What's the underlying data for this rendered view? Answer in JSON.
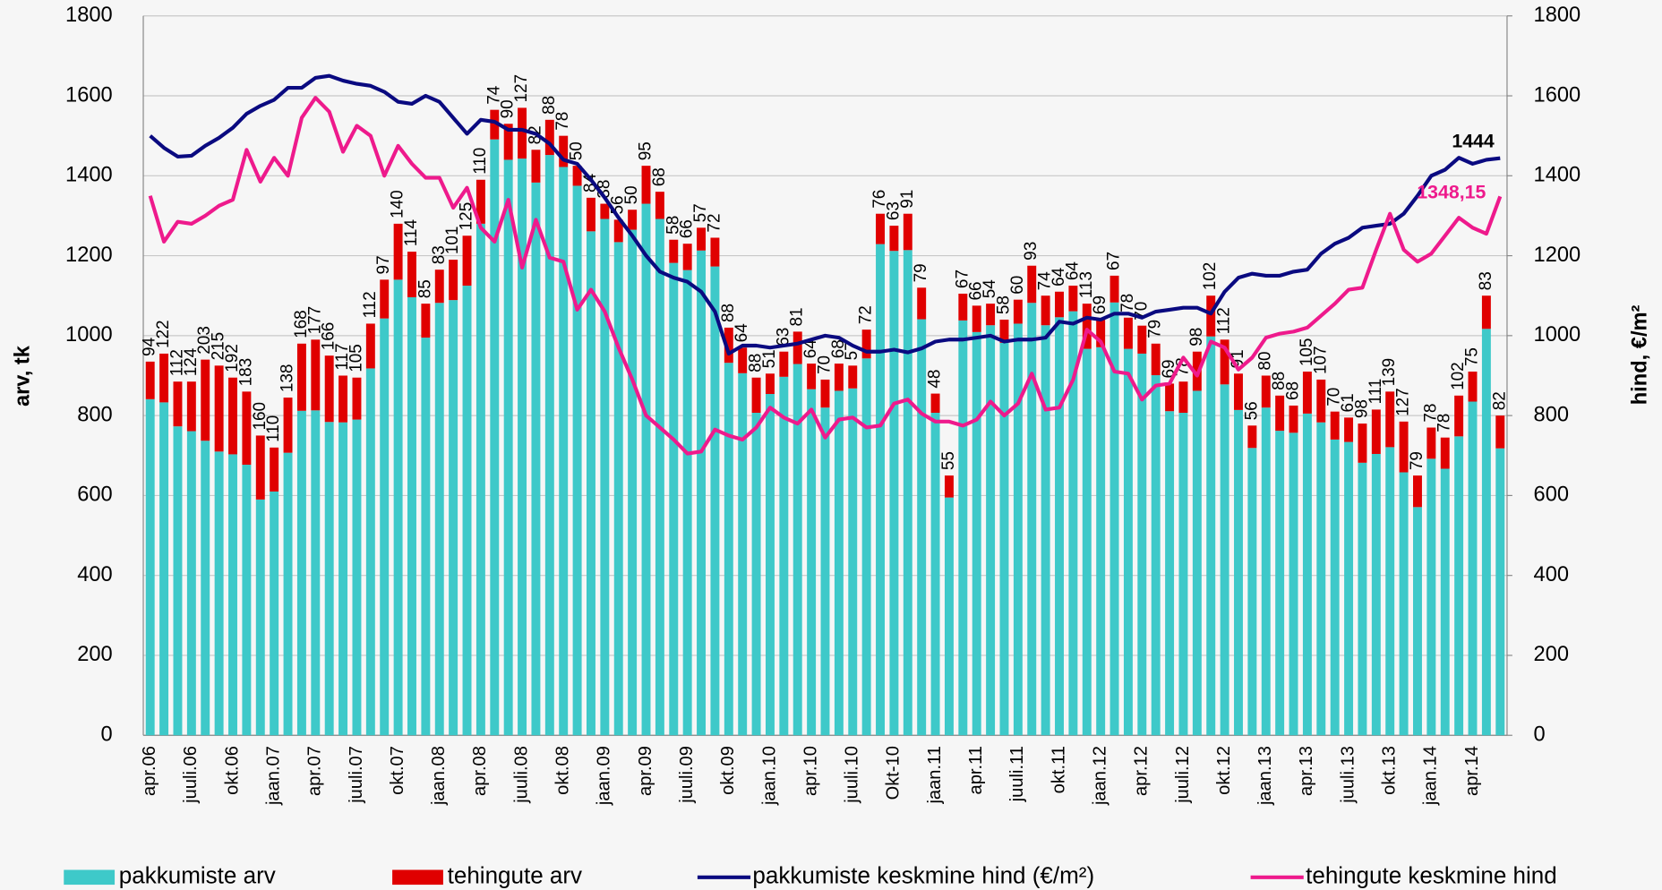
{
  "chart_data": {
    "type": "bar",
    "stacked": true,
    "ylabel": "arv, tk",
    "y2label": "hind, €/m²",
    "ylim": [
      0,
      1800
    ],
    "yticks": [
      0,
      200,
      400,
      600,
      800,
      1000,
      1200,
      1400,
      1600,
      1800
    ],
    "y2lim": [
      0,
      1800
    ],
    "y2ticks": [
      0,
      200,
      400,
      600,
      800,
      1000,
      1200,
      1400,
      1600,
      1800
    ],
    "grid": true,
    "legend": "bottom",
    "categories": [
      "apr.06",
      null,
      null,
      "juuli.06",
      null,
      null,
      "okt.06",
      null,
      null,
      "jaan.07",
      null,
      null,
      "apr.07",
      null,
      null,
      "juuli.07",
      null,
      null,
      "okt.07",
      null,
      null,
      "jaan.08",
      null,
      null,
      "apr.08",
      null,
      null,
      "juuli.08",
      null,
      null,
      "okt.08",
      null,
      null,
      "jaan.09",
      null,
      null,
      "apr.09",
      null,
      null,
      "juuli.09",
      null,
      null,
      "okt.09",
      null,
      null,
      "jaan.10",
      null,
      null,
      "apr.10",
      null,
      null,
      "juuli.10",
      null,
      null,
      "Okt-10",
      null,
      null,
      "jaan.11",
      null,
      null,
      "apr.11",
      null,
      null,
      "juuli.11",
      null,
      null,
      "okt.11",
      null,
      null,
      "jaan.12",
      null,
      null,
      "apr.12",
      null,
      null,
      "juuli.12",
      null,
      null,
      "okt.12",
      null,
      null,
      "jaan.13",
      null,
      null,
      "apr.13",
      null,
      null,
      "juuli.13",
      null,
      null,
      "okt.13",
      null,
      null,
      "jaan.14",
      null,
      null,
      "apr.14",
      null,
      null
    ],
    "series": [
      {
        "name": "pakkumiste arv",
        "type": "bar",
        "color": "#3ec9c9",
        "values": [
          841,
          833,
          773,
          761,
          737,
          710,
          703,
          677,
          590,
          610,
          707,
          812,
          813,
          784,
          783,
          790,
          918,
          1043,
          1140,
          1096,
          995,
          1082,
          1089,
          1125,
          1280,
          1491,
          1440,
          1443,
          1383,
          1452,
          1422,
          1375,
          1261,
          1292,
          1234,
          1265,
          1330,
          1292,
          1182,
          1164,
          1213,
          1173,
          932,
          906,
          807,
          854,
          897,
          929,
          866,
          820,
          862,
          868,
          943,
          1229,
          1212,
          1214,
          1041,
          807,
          595,
          1038,
          1009,
          1026,
          982,
          1030,
          1082,
          1026,
          1046,
          1061,
          967,
          971,
          1083,
          967,
          955,
          901,
          811,
          807,
          862,
          998,
          878,
          814,
          719,
          820,
          762,
          757,
          805,
          783,
          740,
          734,
          682,
          704,
          721,
          658,
          571,
          692,
          667,
          748,
          835,
          1017,
          718
        ]
      },
      {
        "name": "tehingute arv",
        "type": "bar",
        "color": "#e00000",
        "data_labels": true,
        "values": [
          94,
          122,
          112,
          124,
          203,
          215,
          192,
          183,
          160,
          110,
          138,
          168,
          177,
          166,
          117,
          105,
          112,
          97,
          140,
          114,
          85,
          83,
          101,
          125,
          110,
          74,
          90,
          127,
          82,
          88,
          78,
          50,
          84,
          38,
          56,
          50,
          95,
          68,
          58,
          66,
          57,
          72,
          88,
          64,
          88,
          51,
          63,
          81,
          64,
          70,
          68,
          57,
          72,
          76,
          63,
          91,
          79,
          48,
          55,
          67,
          66,
          54,
          58,
          60,
          93,
          74,
          64,
          64,
          113,
          69,
          67,
          78,
          70,
          79,
          69,
          78,
          98,
          102,
          112,
          91,
          56,
          80,
          88,
          68,
          105,
          107,
          70,
          61,
          98,
          111,
          139,
          127,
          79,
          78,
          78,
          102,
          75,
          83,
          82
        ]
      },
      {
        "name": "pakkumiste keskmine hind (€/m²)",
        "type": "line",
        "axis": "y2",
        "color": "#0a0a80",
        "end_label": true,
        "values": [
          1500,
          1470,
          1448,
          1450,
          1475,
          1495,
          1520,
          1555,
          1575,
          1590,
          1620,
          1620,
          1645,
          1650,
          1638,
          1630,
          1625,
          1610,
          1585,
          1580,
          1600,
          1585,
          1545,
          1505,
          1540,
          1535,
          1515,
          1515,
          1505,
          1480,
          1440,
          1430,
          1390,
          1345,
          1295,
          1250,
          1200,
          1160,
          1145,
          1135,
          1110,
          1060,
          955,
          975,
          975,
          970,
          975,
          980,
          990,
          1000,
          995,
          975,
          960,
          960,
          965,
          958,
          968,
          985,
          990,
          990,
          995,
          1000,
          985,
          990,
          990,
          995,
          1035,
          1030,
          1045,
          1040,
          1055,
          1055,
          1045,
          1060,
          1065,
          1070,
          1070,
          1055,
          1110,
          1145,
          1155,
          1150,
          1150,
          1160,
          1165,
          1205,
          1230,
          1245,
          1270,
          1275,
          1280,
          1305,
          1350,
          1400,
          1415,
          1445,
          1430,
          1440,
          1444
        ]
      },
      {
        "name": "tehingute keskmine hind",
        "type": "line",
        "axis": "y2",
        "color": "#ee1a8c",
        "values": [
          1350,
          1235,
          1285,
          1280,
          1300,
          1325,
          1340,
          1465,
          1385,
          1445,
          1400,
          1545,
          1595,
          1560,
          1460,
          1525,
          1500,
          1400,
          1475,
          1430,
          1395,
          1395,
          1320,
          1370,
          1270,
          1235,
          1340,
          1170,
          1290,
          1195,
          1185,
          1065,
          1115,
          1060,
          970,
          890,
          800,
          770,
          740,
          705,
          710,
          765,
          750,
          740,
          770,
          820,
          795,
          780,
          815,
          745,
          790,
          795,
          770,
          775,
          830,
          840,
          805,
          785,
          785,
          775,
          790,
          835,
          800,
          830,
          905,
          815,
          820,
          890,
          1015,
          985,
          910,
          905,
          840,
          875,
          880,
          945,
          900,
          985,
          970,
          915,
          945,
          995,
          1005,
          1010,
          1020,
          1050,
          1080,
          1115,
          1120,
          1215,
          1305,
          1215,
          1185,
          1205,
          1250,
          1295,
          1270,
          1255,
          1348.15
        ],
        "value_labels": [
          null,
          null,
          null,
          null,
          null,
          null,
          null,
          null,
          null,
          null,
          null,
          null,
          null,
          null,
          null,
          null,
          null,
          null,
          null,
          null,
          null,
          null,
          null,
          null,
          null,
          null,
          null,
          null,
          null,
          null,
          null,
          null,
          null,
          null,
          null,
          null,
          null,
          null,
          null,
          null,
          null,
          null,
          null,
          null,
          null,
          null,
          null,
          null,
          null,
          null,
          null,
          null,
          null,
          null,
          null,
          null,
          null,
          null,
          null,
          null,
          null,
          null,
          null,
          null,
          null,
          null,
          null,
          null,
          null,
          null,
          null,
          null,
          null,
          null,
          null,
          null,
          null,
          null,
          null,
          null,
          null,
          null,
          null,
          null,
          null,
          null,
          null,
          null,
          null,
          null,
          null,
          null,
          null,
          null,
          null,
          null,
          null,
          null,
          "1348,15"
        ]
      }
    ]
  }
}
